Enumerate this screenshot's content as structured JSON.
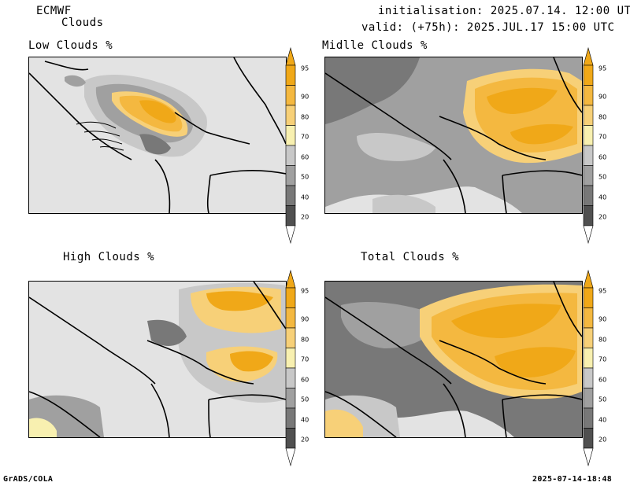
{
  "header": {
    "model": "ECMWF",
    "parameter": "Clouds",
    "init": "initialisation: 2025.07.14. 12:00 UTC",
    "valid": "valid: (+75h): 2025.JUL.17 15:00 UTC"
  },
  "panels": [
    {
      "title": "Low Clouds %"
    },
    {
      "title": "Midlle Clouds %"
    },
    {
      "title": "High Clouds %"
    },
    {
      "title": "Total Clouds %"
    }
  ],
  "colorbar": {
    "levels": [
      "95",
      "90",
      "80",
      "70",
      "60",
      "50",
      "40",
      "20"
    ],
    "colors": {
      "c95": "#f0a818",
      "c90": "#f4b840",
      "c80": "#f7d078",
      "c70": "#f8f0b0",
      "c60": "#c8c8c8",
      "c50": "#a0a0a0",
      "c40": "#787878",
      "c20": "#505050"
    },
    "background": "#e3e3e3"
  },
  "footer": {
    "left": "GrADS/COLA",
    "right": "2025-07-14-18:48"
  }
}
